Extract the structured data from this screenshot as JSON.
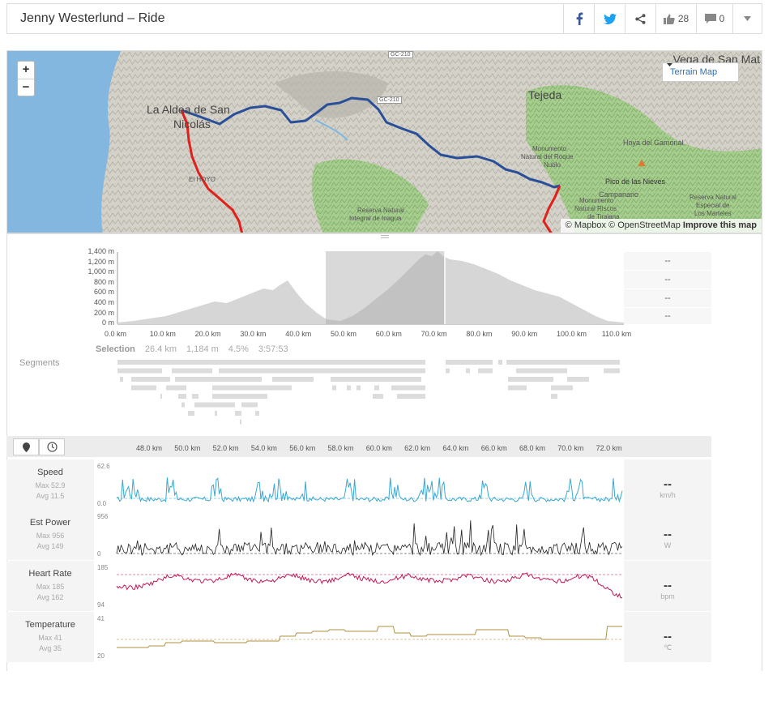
{
  "header": {
    "title": "Jenny Westerlund – Ride",
    "kudos_count": "28",
    "comment_count": "0"
  },
  "map": {
    "zoom_in": "+",
    "zoom_out": "−",
    "map_type": "Terrain Map",
    "attribution_mapbox": "© Mapbox",
    "attribution_osm": "© OpenStreetMap",
    "improve_link": "Improve this map",
    "labels": {
      "vega": "Vega de San Mat",
      "aldea1": "La Aldea de San",
      "aldea2": "Nicolás",
      "tejeda": "Tejeda",
      "road1": "GC-210",
      "road2": "GC-210",
      "hoya": "Hoya del Gamonal",
      "monumento1": "Monumento",
      "monumento2": "Natural del Roque",
      "monumento3": "Nublo",
      "pico": "Pico de las Nieves",
      "campanario": "Campanario",
      "monumento4": "Monumento",
      "riscos": "Natural Riscos",
      "tirajana": "de Tirajana",
      "reserva1": "Reserva Natural",
      "inagua": "Integral de Inagua",
      "reserva2": "Reserva Natural",
      "especial": "Especial de",
      "marteles": "Los Marteles",
      "hoyo": "El HOYO"
    }
  },
  "elevation": {
    "y_ticks": [
      "1,400 m",
      "1,200 m",
      "1,000 m",
      "800 m",
      "600 m",
      "400 m",
      "200 m",
      "0 m"
    ],
    "x_ticks": [
      "0.0 km",
      "10.0 km",
      "20.0 km",
      "30.0 km",
      "40.0 km",
      "50.0 km",
      "60.0 km",
      "70.0 km",
      "80.0 km",
      "90.0 km",
      "100.0 km",
      "110.0 km"
    ],
    "side_values": [
      "--",
      "--",
      "--",
      "--"
    ]
  },
  "selection": {
    "label": "Selection",
    "distance": "26.4 km",
    "elevation": "1,184 m",
    "grade": "4.5%",
    "time": "3:57:53"
  },
  "segments_label": "Segments",
  "streams_axis": [
    "48.0 km",
    "50.0 km",
    "52.0 km",
    "54.0 km",
    "56.0 km",
    "58.0 km",
    "60.0 km",
    "62.0 km",
    "64.0 km",
    "66.0 km",
    "68.0 km",
    "70.0 km",
    "72.0 km"
  ],
  "streams": [
    {
      "name": "Speed",
      "max": "Max 52.9",
      "avg": "Avg 11.5",
      "ymax": "62.6",
      "ymin": "0.0",
      "value": "--",
      "unit": "km/h",
      "color": "#3aa8d1"
    },
    {
      "name": "Est Power",
      "max": "Max 956",
      "avg": "Avg 149",
      "ymax": "956",
      "ymin": "0",
      "value": "--",
      "unit": "W",
      "color": "#222222"
    },
    {
      "name": "Heart Rate",
      "max": "Max 185",
      "avg": "Avg 162",
      "ymax": "185",
      "ymin": "94",
      "value": "--",
      "unit": "bpm",
      "color": "#c2185b"
    },
    {
      "name": "Temperature",
      "max": "Max 41",
      "avg": "Avg 35",
      "ymax": "41",
      "ymin": "20",
      "value": "--",
      "unit": "℃",
      "color": "#b09040"
    }
  ],
  "colors": {
    "route_blue": "#2a4f99",
    "route_red": "#e0201a",
    "map_terrain": "#c9c7bf",
    "map_forest": "#8fc078",
    "map_sea": "#7fb7e0"
  }
}
